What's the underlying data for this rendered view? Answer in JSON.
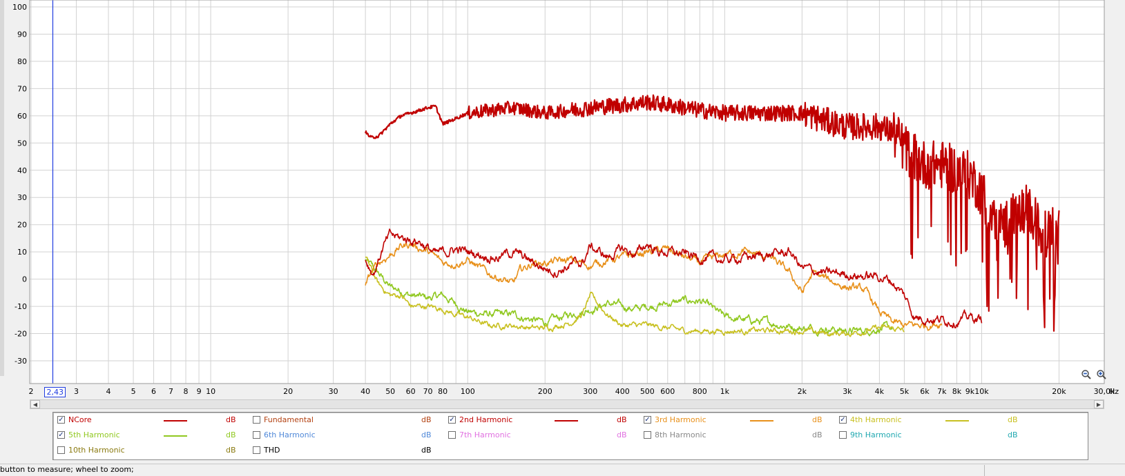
{
  "chart_data": {
    "type": "line",
    "xscale": "log",
    "xlim": [
      2,
      30000
    ],
    "ylim": [
      -35,
      100
    ],
    "xunit": "Hz",
    "yticks": [
      100,
      90,
      80,
      70,
      60,
      50,
      40,
      30,
      20,
      10,
      0,
      -10,
      -20,
      -30
    ],
    "xticks": [
      {
        "v": 2,
        "label": "2"
      },
      {
        "v": 3,
        "label": "3"
      },
      {
        "v": 4,
        "label": "4"
      },
      {
        "v": 5,
        "label": "5"
      },
      {
        "v": 6,
        "label": "6"
      },
      {
        "v": 7,
        "label": "7"
      },
      {
        "v": 8,
        "label": "8"
      },
      {
        "v": 9,
        "label": "9"
      },
      {
        "v": 10,
        "label": "10"
      },
      {
        "v": 20,
        "label": "20"
      },
      {
        "v": 30,
        "label": "30"
      },
      {
        "v": 40,
        "label": "40"
      },
      {
        "v": 50,
        "label": "50"
      },
      {
        "v": 60,
        "label": "60"
      },
      {
        "v": 70,
        "label": "70"
      },
      {
        "v": 80,
        "label": "80"
      },
      {
        "v": 100,
        "label": "100"
      },
      {
        "v": 200,
        "label": "200"
      },
      {
        "v": 300,
        "label": "300"
      },
      {
        "v": 400,
        "label": "400"
      },
      {
        "v": 500,
        "label": "500"
      },
      {
        "v": 600,
        "label": "600"
      },
      {
        "v": 800,
        "label": "800"
      },
      {
        "v": 1000,
        "label": "1k"
      },
      {
        "v": 2000,
        "label": "2k"
      },
      {
        "v": 3000,
        "label": "3k"
      },
      {
        "v": 4000,
        "label": "4k"
      },
      {
        "v": 5000,
        "label": "5k"
      },
      {
        "v": 6000,
        "label": "6k"
      },
      {
        "v": 7000,
        "label": "7k"
      },
      {
        "v": 8000,
        "label": "8k"
      },
      {
        "v": 9000,
        "label": "9k"
      },
      {
        "v": 10000,
        "label": "10k"
      },
      {
        "v": 20000,
        "label": "20k"
      },
      {
        "v": 30000,
        "label": "30,0k"
      }
    ],
    "cursor": {
      "x": 2.43,
      "label": "2,43"
    },
    "series": [
      {
        "name": "NCore",
        "color": "#c00000",
        "width": 2.2,
        "noise": 2.5,
        "points": [
          [
            40,
            54
          ],
          [
            42,
            52
          ],
          [
            45,
            52.5
          ],
          [
            50,
            57
          ],
          [
            55,
            60
          ],
          [
            60,
            61
          ],
          [
            65,
            62
          ],
          [
            70,
            63
          ],
          [
            75,
            63.5
          ],
          [
            80,
            57
          ],
          [
            90,
            59
          ],
          [
            100,
            61
          ],
          [
            150,
            63
          ],
          [
            200,
            61
          ],
          [
            250,
            62
          ],
          [
            300,
            63
          ],
          [
            400,
            64
          ],
          [
            500,
            65
          ],
          [
            600,
            64
          ],
          [
            800,
            62
          ],
          [
            1000,
            61
          ],
          [
            1500,
            61
          ],
          [
            2000,
            61
          ],
          [
            2500,
            58
          ],
          [
            3000,
            56
          ],
          [
            4000,
            56
          ],
          [
            4500,
            54
          ],
          [
            5000,
            48
          ],
          [
            6000,
            42
          ],
          [
            7000,
            42
          ],
          [
            8000,
            40
          ],
          [
            9000,
            38
          ],
          [
            10000,
            32
          ],
          [
            11000,
            22
          ],
          [
            12000,
            20
          ],
          [
            14000,
            24
          ],
          [
            15000,
            26
          ],
          [
            16000,
            22
          ],
          [
            17000,
            18
          ],
          [
            18000,
            16
          ],
          [
            19000,
            18
          ],
          [
            20000,
            19
          ]
        ]
      },
      {
        "name": "2nd Harmonic",
        "color": "#c00000",
        "width": 1.6,
        "noise": 2.5,
        "points": [
          [
            40,
            7
          ],
          [
            43,
            2
          ],
          [
            47,
            12
          ],
          [
            50,
            16
          ],
          [
            55,
            15
          ],
          [
            65,
            14
          ],
          [
            75,
            9
          ],
          [
            90,
            11
          ],
          [
            100,
            10
          ],
          [
            130,
            8
          ],
          [
            150,
            10
          ],
          [
            180,
            6
          ],
          [
            200,
            4
          ],
          [
            220,
            3
          ],
          [
            250,
            5
          ],
          [
            280,
            6
          ],
          [
            300,
            12
          ],
          [
            350,
            8
          ],
          [
            400,
            11
          ],
          [
            450,
            9
          ],
          [
            500,
            13
          ],
          [
            550,
            10
          ],
          [
            600,
            10
          ],
          [
            700,
            9
          ],
          [
            800,
            8
          ],
          [
            1000,
            7
          ],
          [
            1200,
            8
          ],
          [
            1500,
            9
          ],
          [
            1800,
            10
          ],
          [
            2000,
            4
          ],
          [
            2500,
            2
          ],
          [
            3000,
            2
          ],
          [
            3500,
            1
          ],
          [
            4000,
            1
          ],
          [
            4500,
            -1
          ],
          [
            5000,
            -6
          ],
          [
            5500,
            -14
          ],
          [
            6000,
            -14
          ],
          [
            7000,
            -15
          ],
          [
            8000,
            -15
          ],
          [
            9000,
            -14
          ],
          [
            10000,
            -15
          ]
        ]
      },
      {
        "name": "3rd Harmonic",
        "color": "#e8901a",
        "width": 1.6,
        "noise": 2,
        "points": [
          [
            40,
            -3
          ],
          [
            42,
            2
          ],
          [
            45,
            6
          ],
          [
            50,
            9
          ],
          [
            55,
            12
          ],
          [
            60,
            13
          ],
          [
            70,
            10
          ],
          [
            75,
            8
          ],
          [
            80,
            6
          ],
          [
            90,
            6
          ],
          [
            100,
            7
          ],
          [
            120,
            2
          ],
          [
            130,
            1
          ],
          [
            150,
            -2
          ],
          [
            160,
            3
          ],
          [
            180,
            6
          ],
          [
            200,
            6
          ],
          [
            250,
            7
          ],
          [
            300,
            5
          ],
          [
            350,
            7
          ],
          [
            400,
            8
          ],
          [
            450,
            9
          ],
          [
            500,
            10
          ],
          [
            600,
            11
          ],
          [
            700,
            8
          ],
          [
            800,
            6
          ],
          [
            1000,
            9
          ],
          [
            1200,
            10
          ],
          [
            1500,
            8
          ],
          [
            1800,
            2
          ],
          [
            2000,
            -5
          ],
          [
            2200,
            2
          ],
          [
            2500,
            0
          ],
          [
            3000,
            -3
          ],
          [
            3500,
            -4
          ],
          [
            4000,
            -12
          ],
          [
            4500,
            -16
          ],
          [
            5000,
            -17
          ],
          [
            5500,
            -17
          ],
          [
            6000,
            -17
          ],
          [
            7000,
            -16
          ]
        ]
      },
      {
        "name": "4th Harmonic",
        "color": "#c8c020",
        "width": 1.6,
        "noise": 1.5,
        "points": [
          [
            40,
            8
          ],
          [
            45,
            -2
          ],
          [
            50,
            -6
          ],
          [
            55,
            -6
          ],
          [
            60,
            -10
          ],
          [
            70,
            -10
          ],
          [
            80,
            -11
          ],
          [
            90,
            -13
          ],
          [
            100,
            -14
          ],
          [
            120,
            -17
          ],
          [
            150,
            -17
          ],
          [
            180,
            -18
          ],
          [
            200,
            -18
          ],
          [
            250,
            -16
          ],
          [
            280,
            -13
          ],
          [
            300,
            -6
          ],
          [
            350,
            -13
          ],
          [
            400,
            -17
          ],
          [
            500,
            -17
          ],
          [
            600,
            -18
          ],
          [
            700,
            -19
          ],
          [
            800,
            -19
          ],
          [
            1000,
            -19
          ],
          [
            1500,
            -19
          ],
          [
            2000,
            -19
          ],
          [
            2500,
            -20
          ],
          [
            3000,
            -20
          ],
          [
            3500,
            -19
          ],
          [
            4000,
            -18
          ],
          [
            4500,
            -18
          ],
          [
            5000,
            -19
          ]
        ]
      },
      {
        "name": "5th Harmonic",
        "color": "#90c820",
        "width": 1.6,
        "noise": 2,
        "points": [
          [
            40,
            7
          ],
          [
            45,
            2
          ],
          [
            50,
            -3
          ],
          [
            55,
            -4
          ],
          [
            60,
            -6
          ],
          [
            70,
            -7
          ],
          [
            80,
            -6
          ],
          [
            90,
            -9
          ],
          [
            100,
            -12
          ],
          [
            120,
            -13
          ],
          [
            150,
            -13
          ],
          [
            180,
            -15
          ],
          [
            200,
            -16
          ],
          [
            250,
            -13
          ],
          [
            300,
            -11
          ],
          [
            350,
            -9
          ],
          [
            400,
            -10
          ],
          [
            450,
            -11
          ],
          [
            500,
            -10
          ],
          [
            600,
            -9
          ],
          [
            700,
            -8
          ],
          [
            800,
            -8
          ],
          [
            900,
            -11
          ],
          [
            1000,
            -14
          ],
          [
            1200,
            -15
          ],
          [
            1500,
            -16
          ],
          [
            2000,
            -18
          ],
          [
            2500,
            -18
          ],
          [
            3000,
            -19
          ],
          [
            3500,
            -19
          ],
          [
            4000,
            -18
          ],
          [
            4500,
            -18
          ]
        ]
      }
    ]
  },
  "legend": [
    {
      "name": "NCore",
      "checked": true,
      "color": "#c00000",
      "unit": "dB",
      "show_line": true
    },
    {
      "name": "Fundamental",
      "checked": false,
      "color": "#b24010",
      "unit": "dB",
      "show_line": false
    },
    {
      "name": "2nd Harmonic",
      "checked": true,
      "color": "#c00000",
      "unit": "dB",
      "show_line": true
    },
    {
      "name": "3rd Harmonic",
      "checked": true,
      "color": "#e8901a",
      "unit": "dB",
      "show_line": true
    },
    {
      "name": "4th Harmonic",
      "checked": true,
      "color": "#c8c020",
      "unit": "dB",
      "show_line": true
    },
    {
      "name": "5th Harmonic",
      "checked": true,
      "color": "#90c820",
      "unit": "dB",
      "show_line": true
    },
    {
      "name": "6th Harmonic",
      "checked": false,
      "color": "#4f88d8",
      "unit": "dB",
      "show_line": false
    },
    {
      "name": "7th Harmonic",
      "checked": false,
      "color": "#e070e0",
      "unit": "dB",
      "show_line": false
    },
    {
      "name": "8th Harmonic",
      "checked": false,
      "color": "#888888",
      "unit": "dB",
      "show_line": false
    },
    {
      "name": "9th Harmonic",
      "checked": false,
      "color": "#20a8b0",
      "unit": "dB",
      "show_line": false
    },
    {
      "name": "10th Harmonic",
      "checked": false,
      "color": "#8a7a10",
      "unit": "dB",
      "show_line": false
    },
    {
      "name": "THD",
      "checked": false,
      "color": "#000000",
      "unit": "dB",
      "show_line": false
    }
  ],
  "statusbar": {
    "text": "button to measure; wheel to zoom;"
  },
  "icons": {
    "zoom_in": "zoom-in-icon",
    "zoom_out": "zoom-out-icon",
    "check": "✓"
  }
}
